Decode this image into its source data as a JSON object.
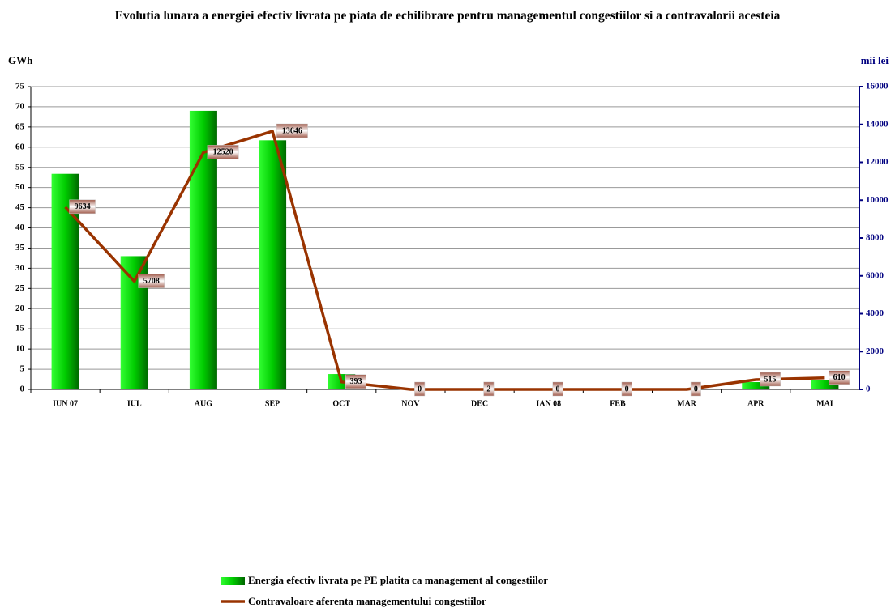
{
  "chart_data": {
    "type": "combo",
    "title": "Evolutia lunara a energiei efectiv livrata pe piata de echilibrare pentru managementul congestiilor si a contravalorii acesteia",
    "y_label": "GWh",
    "y2_label": "mii lei",
    "categories": [
      "IUN 07",
      "IUL",
      "AUG",
      "SEP",
      "OCT",
      "NOV",
      "DEC",
      "IAN 08",
      "FEB",
      "MAR",
      "APR",
      "MAI"
    ],
    "series": [
      {
        "name": "Energia efectiv livrata pe PE platita ca management al congestiilor",
        "type": "bar",
        "color": "#00cc00",
        "values": [
          53.4,
          33,
          69,
          61.7,
          3.8,
          0,
          0,
          0,
          0,
          0,
          1.8,
          2.4
        ]
      },
      {
        "name": "Contravaloare aferenta managementului congestiilor",
        "type": "line",
        "axis": "y2",
        "color": "#993300",
        "values": [
          9634,
          5708,
          12520,
          13646,
          393,
          0,
          2,
          0,
          0,
          0,
          515,
          610
        ]
      }
    ],
    "ylim": [
      0,
      75
    ],
    "yticks": [
      0,
      5,
      10,
      15,
      20,
      25,
      30,
      35,
      40,
      45,
      50,
      55,
      60,
      65,
      70,
      75
    ],
    "y2lim": [
      0,
      16000
    ],
    "y2ticks": [
      0,
      2000,
      4000,
      6000,
      8000,
      10000,
      12000,
      14000,
      16000
    ],
    "grid": true
  }
}
